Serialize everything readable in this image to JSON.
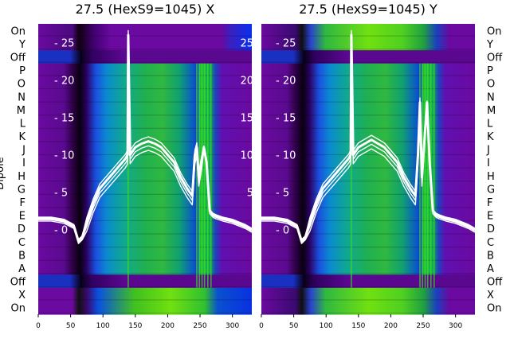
{
  "chart_data": [
    {
      "type": "heatmap",
      "title": "27.5 (HexS9=1045) X",
      "ylabel": "Dipole",
      "row_labels": [
        "On",
        "Y",
        "Off",
        "P",
        "O",
        "N",
        "M",
        "L",
        "K",
        "J",
        "I",
        "H",
        "G",
        "F",
        "E",
        "D",
        "C",
        "B",
        "A",
        "Off",
        "X",
        "On"
      ],
      "x_ticks": [
        0,
        50,
        100,
        150,
        200,
        250,
        300
      ],
      "xlim": [
        0,
        330
      ],
      "overlay_ticks": [
        25,
        20,
        15,
        10,
        5,
        0
      ],
      "overlay_ylim": [
        -2.8,
        27.5
      ],
      "overlay_line": {
        "x": [
          0,
          20,
          40,
          55,
          62,
          68,
          75,
          85,
          95,
          105,
          115,
          125,
          135,
          138,
          139,
          142,
          150,
          160,
          170,
          180,
          190,
          200,
          210,
          220,
          230,
          238,
          242,
          245,
          248,
          252,
          256,
          260,
          265,
          270,
          275,
          285,
          300,
          320,
          330
        ],
        "y": [
          1.5,
          1.5,
          1.2,
          0.5,
          -1.5,
          -1.0,
          1.0,
          3.5,
          5.5,
          6.5,
          7.5,
          8.5,
          9.5,
          10,
          26,
          10,
          11,
          11.5,
          11.8,
          11.5,
          11,
          10,
          9,
          7,
          5.5,
          4.5,
          10,
          11,
          7,
          9,
          11,
          9,
          2.5,
          2,
          1.8,
          1.5,
          1.2,
          0.5,
          0
        ]
      }
    },
    {
      "type": "heatmap",
      "title": "27.5 (HexS9=1045) Y",
      "row_labels": [
        "On",
        "Y",
        "Off",
        "P",
        "O",
        "N",
        "M",
        "L",
        "K",
        "J",
        "I",
        "H",
        "G",
        "F",
        "E",
        "D",
        "C",
        "B",
        "A",
        "Off",
        "X",
        "On"
      ],
      "x_ticks": [
        0,
        50,
        100,
        150,
        200,
        250,
        300
      ],
      "xlim": [
        0,
        330
      ],
      "overlay_ticks": [
        25,
        20,
        15,
        10,
        5,
        0
      ],
      "overlay_ylim": [
        -2.8,
        27.5
      ],
      "overlay_line": {
        "x": [
          0,
          20,
          40,
          55,
          62,
          68,
          75,
          85,
          95,
          105,
          115,
          125,
          135,
          138,
          139,
          142,
          150,
          160,
          170,
          180,
          190,
          200,
          210,
          220,
          230,
          238,
          242,
          245,
          248,
          252,
          256,
          260,
          265,
          270,
          275,
          285,
          300,
          320,
          330
        ],
        "y": [
          1.5,
          1.5,
          1.2,
          0.5,
          -1.5,
          -1.0,
          1.0,
          3.5,
          5.5,
          6.5,
          7.5,
          8.5,
          9.5,
          10,
          26,
          10,
          11,
          11.5,
          12,
          11.5,
          11,
          10,
          9,
          7,
          5.5,
          4.5,
          10,
          17,
          7,
          12,
          17,
          9,
          2.5,
          2,
          1.8,
          1.5,
          1.2,
          0.5,
          0
        ]
      }
    }
  ]
}
